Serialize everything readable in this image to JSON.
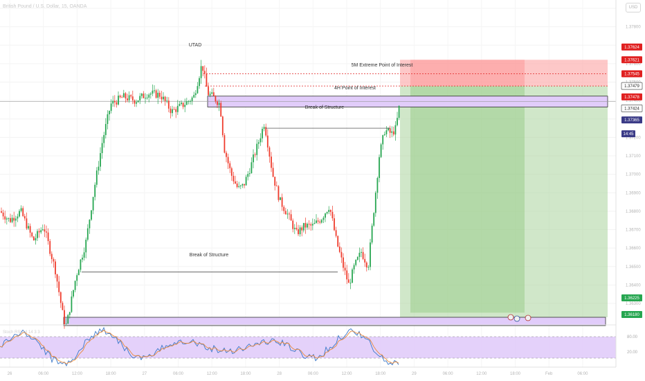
{
  "header": {
    "symbol_text": "British Pound / U.S. Dollar, 15, OANDA",
    "currency": "USD"
  },
  "colors": {
    "up": "#26a650",
    "down": "#ef3b2c",
    "zone_fill": "#e1ccfa",
    "stop_fill": "#fcaaaa",
    "target_fill": "#a9d39c",
    "level_red": "#e02020",
    "blue_label": "#3a3a86"
  },
  "annotations": {
    "utad": "UTAD",
    "bos_upper": "Break of Structure",
    "bos_lower": "Break of Structure",
    "poi_4h": "4H Point of Interest",
    "poi_5m": "5M Extreme Point of Interest"
  },
  "price_badges": [
    {
      "label": "1.37624",
      "color": "#e02020"
    },
    {
      "label": "1.37621",
      "color": "#e02020"
    },
    {
      "label": "1.37545",
      "color": "#e02020"
    },
    {
      "label": "1.37479",
      "color": "#ffffff"
    },
    {
      "label": "1.37478",
      "color": "#e02020"
    },
    {
      "label": "1.37424",
      "color": "#ffffff"
    },
    {
      "label": "1.37365",
      "color": "#3a3a86"
    },
    {
      "label": "14:45",
      "color": "#3a3a86"
    },
    {
      "label": "1.36225",
      "color": "#26a650"
    },
    {
      "label": "1.36180",
      "color": "#26a650"
    }
  ],
  "oscillator": {
    "level_upper": "80.00",
    "level_lower": "20.00",
    "label": "Stoch RSI 14 14 3 3"
  },
  "chart_data": {
    "type": "candlestick",
    "symbol": "GBPUSD",
    "timeframe": "15",
    "ylim": [
      1.3618,
      1.379
    ],
    "y_ticks": [
      "1.37900",
      "1.37800",
      "1.37700",
      "1.37600",
      "1.37500",
      "1.37400",
      "1.37300",
      "1.37200",
      "1.37100",
      "1.37000",
      "1.36900",
      "1.36800",
      "1.36700",
      "1.36600",
      "1.36500",
      "1.36400",
      "1.36300"
    ],
    "x_ticks": [
      "26",
      "06:00",
      "12:00",
      "18:00",
      "27",
      "06:00",
      "12:00",
      "18:00",
      "28",
      "06:00",
      "12:00",
      "18:00",
      "29",
      "06:00",
      "12:00",
      "18:00",
      "Feb",
      "06:00"
    ],
    "price_path": [
      [
        0,
        1.368
      ],
      [
        14,
        1.3675
      ],
      [
        30,
        1.368
      ],
      [
        48,
        1.3664
      ],
      [
        63,
        1.3672
      ],
      [
        80,
        1.3648
      ],
      [
        92,
        1.3621
      ],
      [
        96,
        1.3618
      ],
      [
        110,
        1.3645
      ],
      [
        124,
        1.3663
      ],
      [
        136,
        1.3692
      ],
      [
        148,
        1.3718
      ],
      [
        160,
        1.3738
      ],
      [
        178,
        1.3742
      ],
      [
        196,
        1.374
      ],
      [
        214,
        1.3744
      ],
      [
        232,
        1.3743
      ],
      [
        248,
        1.3734
      ],
      [
        266,
        1.3738
      ],
      [
        280,
        1.3742
      ],
      [
        292,
        1.376
      ],
      [
        300,
        1.3744
      ],
      [
        308,
        1.3742
      ],
      [
        318,
        1.3738
      ],
      [
        324,
        1.3714
      ],
      [
        334,
        1.37
      ],
      [
        344,
        1.3692
      ],
      [
        352,
        1.3694
      ],
      [
        362,
        1.3704
      ],
      [
        374,
        1.3718
      ],
      [
        382,
        1.3728
      ],
      [
        394,
        1.37
      ],
      [
        404,
        1.3686
      ],
      [
        416,
        1.3678
      ],
      [
        428,
        1.3668
      ],
      [
        440,
        1.3672
      ],
      [
        452,
        1.3672
      ],
      [
        464,
        1.3676
      ],
      [
        476,
        1.3683
      ],
      [
        486,
        1.3664
      ],
      [
        496,
        1.365
      ],
      [
        504,
        1.364
      ],
      [
        512,
        1.365
      ],
      [
        522,
        1.3658
      ],
      [
        532,
        1.365
      ],
      [
        540,
        1.368
      ],
      [
        548,
        1.371
      ],
      [
        556,
        1.3724
      ],
      [
        566,
        1.3722
      ],
      [
        572,
        1.3725
      ],
      [
        577,
        1.3737
      ]
    ],
    "levels": {
      "poi_4h": [
        1.37365,
        1.37424
      ],
      "poi_5m": 1.37479,
      "utad_level": 1.37545,
      "bos_upper": 1.3725,
      "bos_lower": 1.3647,
      "demand_zone": [
        1.3618,
        1.36225
      ]
    },
    "position": {
      "type": "short",
      "entry": 1.37478,
      "stop": 1.37621,
      "target": 1.36225
    },
    "stoch_rsi": {
      "ylim": [
        0,
        100
      ],
      "upper": 80,
      "lower": 20
    }
  }
}
